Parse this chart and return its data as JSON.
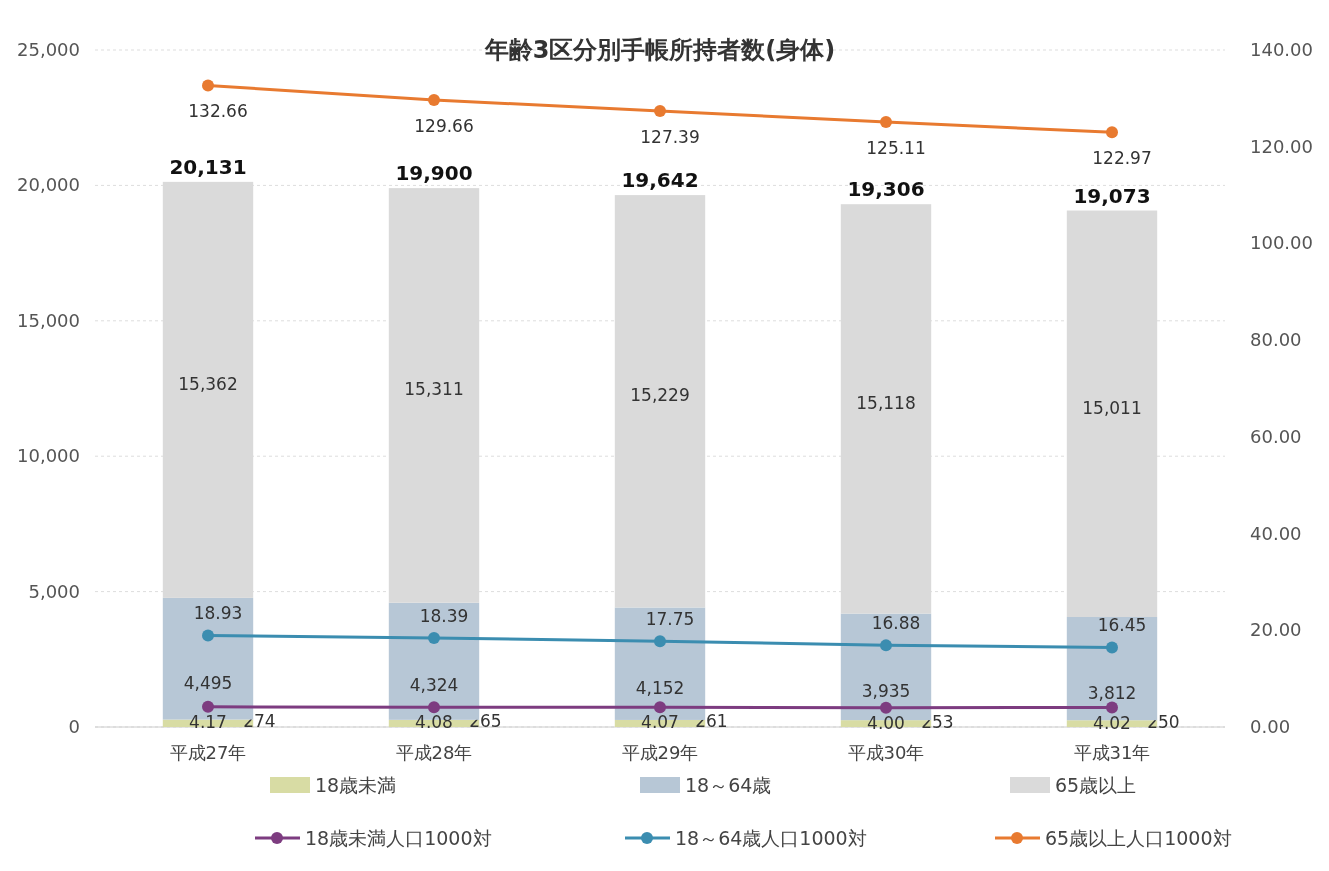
{
  "chart_data": {
    "type": "bar",
    "title": "年齢3区分別手帳所持者数(身体)",
    "categories": [
      "平成27年",
      "平成28年",
      "平成29年",
      "平成30年",
      "平成31年"
    ],
    "stacked": true,
    "grid": "y",
    "legend": "bottom",
    "marker": "circle",
    "line_style": "solid",
    "series": [
      {
        "name": "18歳未満",
        "color": "#d8dca4",
        "values": [
          274,
          265,
          261,
          253,
          250
        ],
        "value_labels": [
          "274",
          "265",
          "261",
          "253",
          "250"
        ]
      },
      {
        "name": "18～64歳",
        "color": "#b7c7d6",
        "values": [
          4495,
          4324,
          4152,
          3935,
          3812
        ],
        "value_labels": [
          "4,495",
          "4,324",
          "4,152",
          "3,935",
          "3,812"
        ]
      },
      {
        "name": "65歳以上",
        "color": "#dadada",
        "values": [
          15362,
          15311,
          15229,
          15118,
          15011
        ],
        "value_labels": [
          "15,362",
          "15,311",
          "15,229",
          "15,118",
          "15,011"
        ]
      },
      {
        "name": "18歳未満人口1000対",
        "type": "line",
        "axis": "y2",
        "color": "#7d3c80",
        "values": [
          4.17,
          4.08,
          4.07,
          4.0,
          4.02
        ],
        "value_labels": [
          "4.17",
          "4.08",
          "4.07",
          "4.00",
          "4.02"
        ]
      },
      {
        "name": "18～64歳人口1000対",
        "type": "line",
        "axis": "y2",
        "color": "#3b8db0",
        "values": [
          18.93,
          18.39,
          17.75,
          16.88,
          16.45
        ],
        "value_labels": [
          "18.93",
          "18.39",
          "17.75",
          "16.88",
          "16.45"
        ]
      },
      {
        "name": "65歳以上人口1000対",
        "type": "line",
        "axis": "y2",
        "color": "#e87a30",
        "values": [
          132.66,
          129.66,
          127.39,
          125.11,
          122.97
        ],
        "value_labels": [
          "132.66",
          "129.66",
          "127.39",
          "125.11",
          "122.97"
        ]
      }
    ],
    "totals": [
      "20,131",
      "19,900",
      "19,642",
      "19,306",
      "19,073"
    ],
    "ylim": [
      0,
      25000
    ],
    "yticks": [
      0,
      {
        "value": 5000,
        "label": "5,000"
      },
      {
        "value": 10000,
        "label": "10,000"
      },
      {
        "value": 15000,
        "label": "15,000"
      },
      {
        "value": 20000,
        "label": "20,000"
      },
      {
        "value": 25000,
        "label": "25,000"
      }
    ],
    "y2lim": [
      0,
      140
    ],
    "y2ticks": [
      {
        "value": 0,
        "label": "0.00"
      },
      {
        "value": 20,
        "label": "20.00"
      },
      {
        "value": 40,
        "label": "40.00"
      },
      {
        "value": 60,
        "label": "60.00"
      },
      {
        "value": 80,
        "label": "80.00"
      },
      {
        "value": 100,
        "label": "100.00"
      },
      {
        "value": 120,
        "label": "120.00"
      },
      {
        "value": 140,
        "label": "140.00"
      }
    ]
  }
}
